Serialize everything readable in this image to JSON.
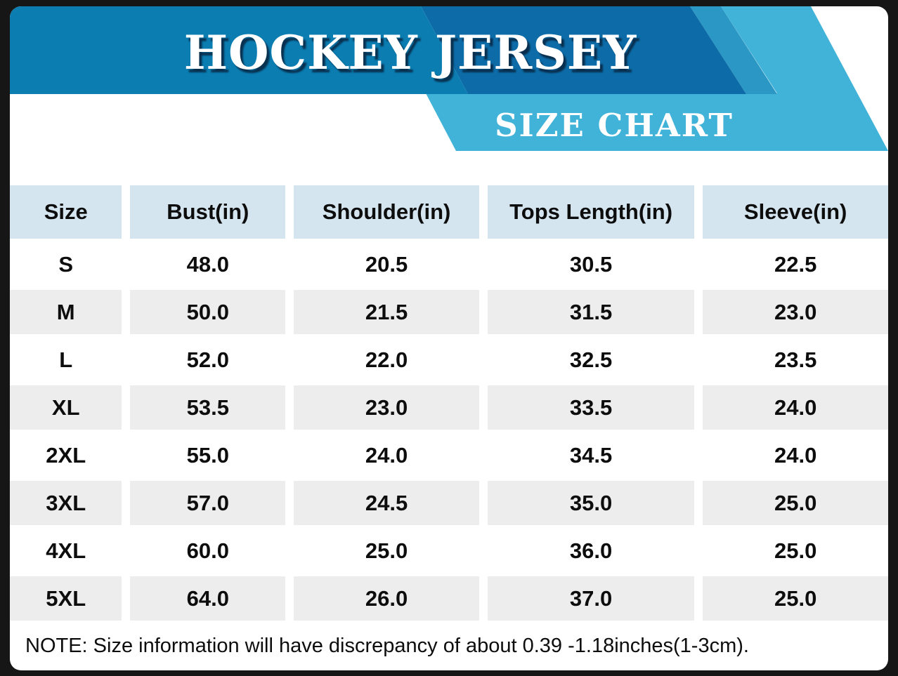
{
  "header": {
    "title": "HOCKEY JERSEY",
    "banner_label": "SIZE CHART"
  },
  "chart_data": {
    "type": "table",
    "title": "HOCKEY JERSEY",
    "subtitle": "SIZE CHART",
    "columns": [
      "Size",
      "Bust(in)",
      "Shoulder(in)",
      "Tops Length(in)",
      "Sleeve(in)"
    ],
    "rows": [
      [
        "S",
        "48.0",
        "20.5",
        "30.5",
        "22.5"
      ],
      [
        "M",
        "50.0",
        "21.5",
        "31.5",
        "23.0"
      ],
      [
        "L",
        "52.0",
        "22.0",
        "32.5",
        "23.5"
      ],
      [
        "XL",
        "53.5",
        "23.0",
        "33.5",
        "24.0"
      ],
      [
        "2XL",
        "55.0",
        "24.0",
        "34.5",
        "24.0"
      ],
      [
        "3XL",
        "57.0",
        "24.5",
        "35.0",
        "25.0"
      ],
      [
        "4XL",
        "60.0",
        "25.0",
        "36.0",
        "25.0"
      ],
      [
        "5XL",
        "64.0",
        "26.0",
        "37.0",
        "25.0"
      ]
    ],
    "note": "NOTE: Size information will have discrepancy of about 0.39 -1.18inches(1-3cm).",
    "layout": {
      "alternating_row_color": "every second data row shaded",
      "legend": "none",
      "grid": "cell blocks separated by white gaps"
    }
  },
  "note": {
    "text": "NOTE: Size information will have discrepancy of about 0.39 -1.18inches(1-3cm)."
  },
  "colors": {
    "banner_blue": "#0b7db1",
    "banner_dark_blue": "#0d6ca7",
    "banner_cyan": "#41b3d8",
    "banner_mid_cyan": "#2b97c4",
    "table_header_bg": "#d5e5ef",
    "row_alt_bg": "#ededee",
    "frame_black": "#161616",
    "text_black": "#0d0d0d",
    "text_white": "#ffffff"
  }
}
